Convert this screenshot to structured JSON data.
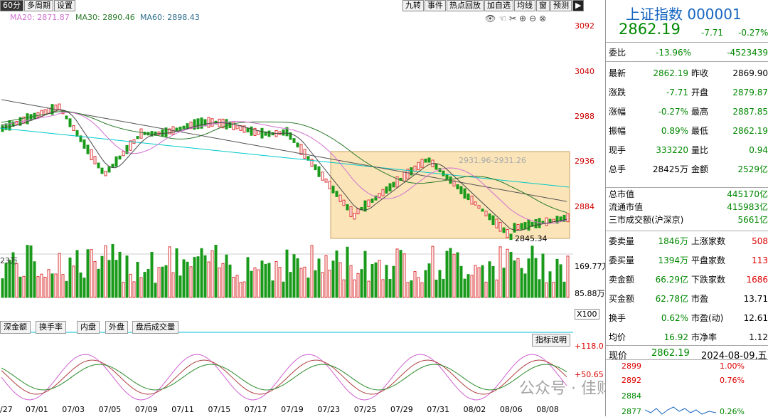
{
  "toolbar": {
    "left": [
      "60分",
      "多周期",
      "设置"
    ],
    "right": [
      "九转",
      "事件",
      "热点回放",
      "加自选",
      "均线",
      "窗",
      "预测"
    ]
  },
  "ma_legend": {
    "ma20": "MA20: 2871.87",
    "ma30": "MA30: 2890.46",
    "ma60": "MA60: 2898.43"
  },
  "price_axis": [
    "3092",
    "3040",
    "2988",
    "2936",
    "2884"
  ],
  "annot": {
    "range": "2931.96-2931.26",
    "low": "2845.34"
  },
  "vol_axis": [
    "169.77万",
    "85.88万",
    "X100"
  ],
  "vol_label": "23万",
  "tabs": [
    "深金额",
    "换手率",
    "内盘",
    "外盘",
    "盘后成交量"
  ],
  "indicator_btn": "指标说明",
  "ind_axis": [
    "+118.0",
    "+50.65"
  ],
  "dates": [
    "07/01",
    "07/03",
    "07/05",
    "07/09",
    "07/11",
    "07/15",
    "07/17",
    "07/19",
    "07/23",
    "07/25",
    "07/29",
    "07/31",
    "08/02",
    "08/06",
    "08/08"
  ],
  "date_left": "/27",
  "watermark": "公众号 · 佳财一分钟",
  "panel": {
    "title": "上证指数 000001",
    "price": "2862.19",
    "change": "-7.71",
    "pct": "-0.27%",
    "webi": {
      "label": "委比",
      "v1": "-13.96%",
      "v2": "-4523439"
    },
    "rows": [
      {
        "l1": "最新",
        "v1": "2862.19",
        "l2": "昨收",
        "v2": "2869.90",
        "c1": "green",
        "c2": "blk"
      },
      {
        "l1": "涨跌",
        "v1": "-7.71",
        "l2": "开盘",
        "v2": "2879.87",
        "c1": "green",
        "c2": "green"
      },
      {
        "l1": "涨幅",
        "v1": "-0.27%",
        "l2": "最高",
        "v2": "2887.85",
        "c1": "green",
        "c2": "green"
      },
      {
        "l1": "振幅",
        "v1": "0.89%",
        "l2": "最低",
        "v2": "2862.19",
        "c1": "green",
        "c2": "green"
      },
      {
        "l1": "现手",
        "v1": "333220",
        "l2": "量比",
        "v2": "0.94",
        "c1": "green",
        "c2": "green"
      },
      {
        "l1": "总手",
        "v1": "28425万",
        "l2": "金额",
        "v2": "2529亿",
        "c1": "blk",
        "c2": "green"
      }
    ],
    "mkt": [
      {
        "l": "总市值",
        "v": "445170亿"
      },
      {
        "l": "流通市值",
        "v": "415983亿"
      },
      {
        "l": "三市成交额(沪深京)",
        "v": "5661亿"
      }
    ],
    "rows2": [
      {
        "l1": "委卖量",
        "v1": "1846万",
        "l2": "上涨家数",
        "v2": "508",
        "c1": "green",
        "c2": "red"
      },
      {
        "l1": "委买量",
        "v1": "1394万",
        "l2": "平盘家数",
        "v2": "113",
        "c1": "green",
        "c2": "red"
      },
      {
        "l1": "卖金额",
        "v1": "66.29亿",
        "l2": "下跌家数",
        "v2": "1686",
        "c1": "green",
        "c2": "red"
      },
      {
        "l1": "买金额",
        "v1": "62.78亿",
        "l2": "市盈",
        "v2": "13.71",
        "c1": "green",
        "c2": "blk"
      },
      {
        "l1": "换手",
        "v1": "0.62%",
        "l2": "市盈(动)",
        "v2": "12.61",
        "c1": "green",
        "c2": "blk"
      },
      {
        "l1": "均价",
        "v1": "16.92",
        "l2": "市净率",
        "v2": "1.12",
        "c1": "green",
        "c2": "blk"
      }
    ],
    "bottom": {
      "label": "现价",
      "price": "2862.19",
      "date": "2024-08-09,五"
    },
    "mini_left": [
      "2899",
      "2892",
      "2884",
      "2877"
    ],
    "mini_right": [
      "1.00%",
      "0.76%",
      "0.26%"
    ]
  }
}
